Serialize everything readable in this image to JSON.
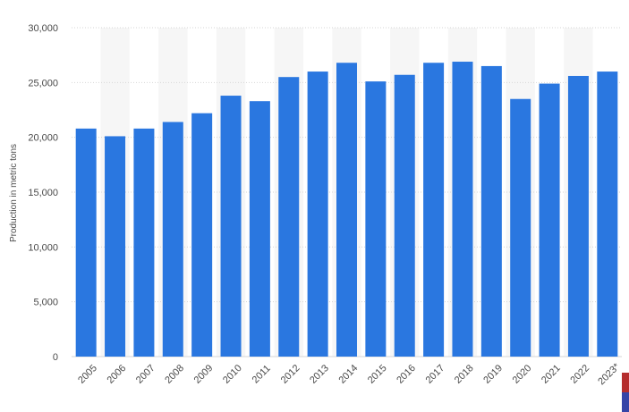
{
  "colors": {
    "bar": "#2a77e0",
    "band": "#f6f6f6",
    "grid": "#d6d6d6",
    "axis_text": "#4a4a4a",
    "corner_top": "#b52d2d",
    "corner_bottom": "#3644a7"
  },
  "chart_data": {
    "type": "bar",
    "ylabel": "Production in metric tons",
    "ylim": [
      0,
      30000
    ],
    "yticks": [
      0,
      5000,
      10000,
      15000,
      20000,
      25000,
      30000
    ],
    "ytick_labels": [
      "0",
      "5,000",
      "10,000",
      "15,000",
      "20,000",
      "25,000",
      "30,000"
    ],
    "categories": [
      "2005",
      "2006",
      "2007",
      "2008",
      "2009",
      "2010",
      "2011",
      "2012",
      "2013",
      "2014",
      "2015",
      "2016",
      "2017",
      "2018",
      "2019",
      "2020",
      "2021",
      "2022",
      "2023*"
    ],
    "values": [
      20800,
      20100,
      20800,
      21400,
      22200,
      23800,
      23300,
      25500,
      26000,
      26800,
      25100,
      25700,
      26800,
      26900,
      26500,
      23500,
      24900,
      25600,
      26000
    ],
    "grid": true,
    "alternating_bands": true
  }
}
